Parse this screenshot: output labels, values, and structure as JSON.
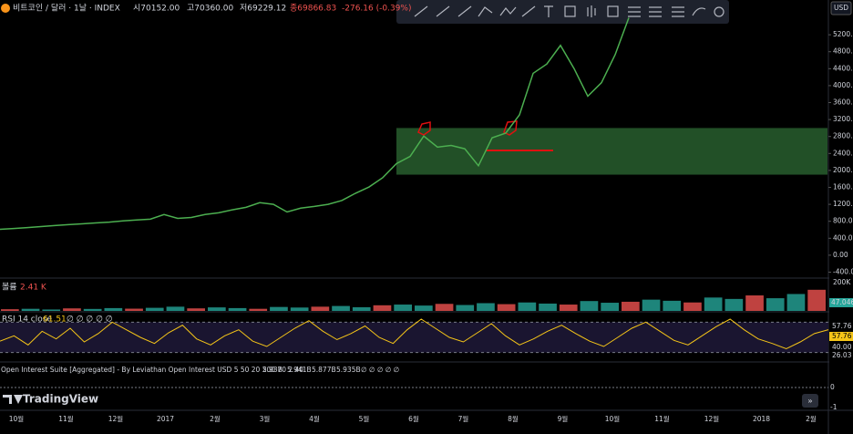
{
  "header": {
    "symbol": "비트코인 / 달러 · 1날 · INDEX",
    "open": "시70152.00",
    "high": "고70360.00",
    "low": "저69229.12",
    "close": "종69866.83",
    "change": "-276.16 (-0.39%)",
    "volume": "볼륨2.41 K"
  },
  "currency": "USD",
  "chart_data": {
    "type": "line",
    "color": "#4caf50",
    "ylim": [
      -540,
      6020
    ],
    "yticks": [
      {
        "value": 5200,
        "label": "5200.00"
      },
      {
        "value": 4800,
        "label": "4800.00"
      },
      {
        "value": 4400,
        "label": "4400.00"
      },
      {
        "value": 4000,
        "label": "4000.00"
      },
      {
        "value": 3600,
        "label": "3600.00"
      },
      {
        "value": 3200,
        "label": "3200.00"
      },
      {
        "value": 2800,
        "label": "2800.00"
      },
      {
        "value": 2400,
        "label": "2400.00"
      },
      {
        "value": 2000,
        "label": "2000.00"
      },
      {
        "value": 1600,
        "label": "1600.00"
      },
      {
        "value": 1200,
        "label": "1200.00"
      },
      {
        "value": 800,
        "label": "800.00"
      },
      {
        "value": 400,
        "label": "400.00"
      },
      {
        "value": 0,
        "label": "0.00"
      },
      {
        "value": -400,
        "label": "-400.00"
      }
    ],
    "values": [
      610,
      630,
      650,
      675,
      700,
      720,
      740,
      760,
      780,
      810,
      830,
      850,
      960,
      870,
      890,
      960,
      1000,
      1070,
      1130,
      1240,
      1200,
      1020,
      1110,
      1150,
      1200,
      1290,
      1460,
      1610,
      1830,
      2160,
      2330,
      2810,
      2550,
      2590,
      2510,
      2110,
      2770,
      2880,
      3310,
      4290,
      4510,
      4950,
      4400,
      3750,
      4070,
      4730,
      5600
    ],
    "zone": {
      "top": 3000,
      "bottom": 1900
    },
    "x_labels": [
      "10월",
      "11월",
      "12월",
      "2017",
      "2월",
      "3월",
      "4월",
      "5월",
      "6월",
      "7월",
      "8월",
      "9월",
      "10월",
      "11월",
      "12월",
      "2018",
      "2월"
    ]
  },
  "volume_pane": {
    "title": "볼륨",
    "last": "2.41 K",
    "ylim": [
      0,
      220
    ],
    "yticks": [
      {
        "value": 200,
        "label": "200K"
      }
    ],
    "tag": "47.046",
    "values": [
      12,
      15,
      10,
      18,
      14,
      20,
      16,
      22,
      30,
      18,
      25,
      20,
      15,
      28,
      24,
      30,
      35,
      26,
      40,
      45,
      38,
      50,
      42,
      55,
      48,
      60,
      52,
      45,
      70,
      58,
      65,
      80,
      72,
      60,
      95,
      85,
      110,
      90,
      120,
      150
    ]
  },
  "rsi_pane": {
    "title": "RSI 14 close",
    "last": "61.51",
    "ylim": [
      20,
      80
    ],
    "bands": [
      70,
      30
    ],
    "labels": [
      "57.76",
      "57.76",
      "40.00",
      "26.03"
    ],
    "empty": "∅ ∅ ∅ ∅ ∅",
    "values": [
      45,
      52,
      40,
      58,
      48,
      62,
      44,
      55,
      70,
      60,
      50,
      42,
      56,
      66,
      48,
      40,
      52,
      60,
      45,
      38,
      50,
      62,
      72,
      58,
      47,
      55,
      65,
      50,
      42,
      60,
      74,
      62,
      50,
      44,
      56,
      68,
      52,
      40,
      48,
      58,
      66,
      55,
      45,
      38,
      50,
      62,
      70,
      58,
      46,
      40,
      52,
      64,
      74,
      60,
      48,
      42,
      35,
      44,
      55,
      60
    ]
  },
  "oi_pane": {
    "title": "Open Interest Suite [Aggregated] - By Leviathan Open Interest USD 5 50 20 200 70 2 40",
    "values": [
      "5.93B",
      "5.941B",
      "5.877B",
      "5.935B"
    ],
    "empty": "∅ ∅ ∅ ∅ ∅",
    "axis": [
      "0",
      "-1"
    ]
  },
  "brand": "TradingView"
}
